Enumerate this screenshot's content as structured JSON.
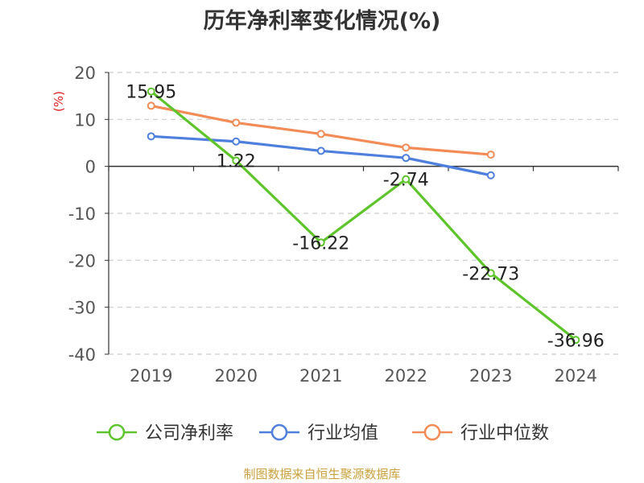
{
  "chart_data": {
    "type": "line",
    "title": "历年净利率变化情况(%)",
    "ylabel": "(%)",
    "categories": [
      "2019",
      "2020",
      "2021",
      "2022",
      "2023",
      "2024"
    ],
    "ylim": [
      -40,
      20
    ],
    "yticks": [
      20,
      10,
      0,
      -10,
      -20,
      -30,
      -40
    ],
    "grid": true,
    "legend_position": "bottom",
    "series": [
      {
        "name": "公司净利率",
        "color": "#5ec42b",
        "values": [
          15.95,
          1.22,
          -16.22,
          -2.74,
          -22.73,
          -36.96
        ],
        "labels": [
          "15.95",
          "1.22",
          "-16.22",
          "-2.74",
          "-22.73",
          "-36.96"
        ]
      },
      {
        "name": "行业均值",
        "color": "#4f7fdd",
        "values": [
          6.4,
          5.3,
          3.3,
          1.8,
          -1.9,
          null
        ]
      },
      {
        "name": "行业中位数",
        "color": "#f28b55",
        "values": [
          12.9,
          9.3,
          6.9,
          4.0,
          2.5,
          null
        ]
      }
    ],
    "source": "制图数据来自恒生聚源数据库"
  }
}
